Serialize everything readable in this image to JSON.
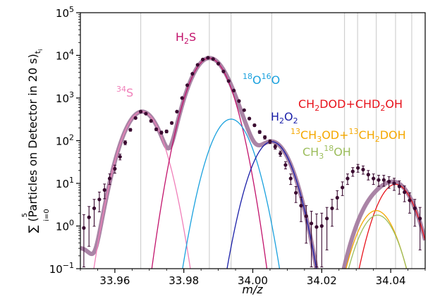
{
  "chart_data": {
    "type": "line",
    "xlabel": "m/z",
    "ylabel": "∑ (Particles on Detector in 20 s)",
    "ylabel_sum_upper": "5",
    "ylabel_sum_lower": "i=0",
    "ylabel_subscript": "t",
    "ylabel_subsubscript": "i",
    "yscale": "log",
    "xlim": [
      33.95,
      34.05
    ],
    "ylim": [
      0.1,
      100000
    ],
    "x_ticks": [
      33.96,
      33.98,
      34.0,
      34.02,
      34.04
    ],
    "x_tick_labels": [
      "33.96",
      "33.98",
      "34.00",
      "34.02",
      "34.04"
    ],
    "y_ticks": [
      {
        "value": 0.1,
        "base": "10",
        "exp": "−1"
      },
      {
        "value": 1,
        "base": "10",
        "exp": "0"
      },
      {
        "value": 10,
        "base": "10",
        "exp": "1"
      },
      {
        "value": 100,
        "base": "10",
        "exp": "2"
      },
      {
        "value": 1000,
        "base": "10",
        "exp": "3"
      },
      {
        "value": 10000,
        "base": "10",
        "exp": "4"
      },
      {
        "value": 100000,
        "base": "10",
        "exp": "5"
      }
    ],
    "vertical_lines": [
      33.9675,
      33.9874,
      33.9937,
      34.0055,
      34.0266,
      34.0304,
      34.0358,
      34.0414,
      34.0461
    ],
    "series": [
      {
        "name": "34S",
        "color": "#f07fb9",
        "peak": {
          "x": 33.9679,
          "y": 480
        },
        "sigma": 0.0034
      },
      {
        "name": "H2S",
        "color": "#c2126b",
        "peak": {
          "x": 33.9874,
          "y": 8600
        },
        "sigma": 0.0035
      },
      {
        "name": "18O16O",
        "color": "#1aa1de",
        "peak": {
          "x": 33.9937,
          "y": 320
        },
        "sigma": 0.0035
      },
      {
        "name": "H2O2",
        "color": "#1a1fa8",
        "peak": {
          "x": 34.0055,
          "y": 95
        },
        "sigma": 0.0035
      },
      {
        "name": "CH2DOD+CHD2OH",
        "color": "#e8131c",
        "peak": {
          "x": 34.0414,
          "y": 9.5
        },
        "sigma": 0.0035
      },
      {
        "name": "13CH3OD+13CH2DOH",
        "color": "#f5a800",
        "peak": {
          "x": 34.0358,
          "y": 2.3
        },
        "sigma": 0.0035
      },
      {
        "name": "CH3 18OH",
        "color": "#9cbd5c",
        "peak": {
          "x": 34.0362,
          "y": 1.8
        },
        "sigma": 0.0035
      }
    ],
    "total_fit": {
      "color": "#9b6e96"
    },
    "data_points": [
      [
        33.951,
        0.9
      ],
      [
        33.9525,
        1.6
      ],
      [
        33.954,
        2.6
      ],
      [
        33.9555,
        4.2
      ],
      [
        33.957,
        7.0
      ],
      [
        33.9585,
        13
      ],
      [
        33.96,
        22
      ],
      [
        33.9615,
        42
      ],
      [
        33.963,
        90
      ],
      [
        33.9645,
        180
      ],
      [
        33.966,
        340
      ],
      [
        33.9675,
        480
      ],
      [
        33.969,
        430
      ],
      [
        33.9705,
        290
      ],
      [
        33.972,
        185
      ],
      [
        33.9735,
        155
      ],
      [
        33.975,
        165
      ],
      [
        33.9765,
        260
      ],
      [
        33.978,
        480
      ],
      [
        33.9795,
        1000
      ],
      [
        33.981,
        2000
      ],
      [
        33.9825,
        3700
      ],
      [
        33.984,
        6000
      ],
      [
        33.9855,
        8000
      ],
      [
        33.987,
        8800
      ],
      [
        33.9885,
        8200
      ],
      [
        33.99,
        6400
      ],
      [
        33.9915,
        4200
      ],
      [
        33.993,
        2500
      ],
      [
        33.9945,
        1500
      ],
      [
        33.996,
        850
      ],
      [
        33.9975,
        520
      ],
      [
        33.999,
        330
      ],
      [
        34.0005,
        230
      ],
      [
        34.002,
        160
      ],
      [
        34.0035,
        120
      ],
      [
        34.005,
        95
      ],
      [
        34.0065,
        72
      ],
      [
        34.008,
        50
      ],
      [
        34.0095,
        27
      ],
      [
        34.011,
        13
      ],
      [
        34.0125,
        6.0
      ],
      [
        34.014,
        3.0
      ],
      [
        34.0155,
        1.7
      ],
      [
        34.017,
        1.15
      ],
      [
        34.0185,
        0.95
      ],
      [
        34.02,
        1.0
      ],
      [
        34.0215,
        1.5
      ],
      [
        34.023,
        2.6
      ],
      [
        34.0245,
        4.6
      ],
      [
        34.026,
        8.0
      ],
      [
        34.0275,
        13
      ],
      [
        34.029,
        19
      ],
      [
        34.0305,
        23
      ],
      [
        34.032,
        21
      ],
      [
        34.0335,
        16
      ],
      [
        34.035,
        13
      ],
      [
        34.0365,
        12
      ],
      [
        34.038,
        12
      ],
      [
        34.0395,
        11
      ],
      [
        34.041,
        10
      ],
      [
        34.0425,
        8.5
      ],
      [
        34.044,
        6.2
      ],
      [
        34.0455,
        4.0
      ],
      [
        34.047,
        2.6
      ],
      [
        34.0485,
        1.5
      ]
    ]
  },
  "labels": {
    "s34": {
      "sup": "34",
      "text": "S"
    },
    "h2s": {
      "a": "H",
      "sub": "2",
      "b": "S"
    },
    "o18o16": {
      "sup1": "18",
      "a": "O",
      "sup2": "16",
      "b": "O"
    },
    "h2o2": {
      "a": "H",
      "sub": "2",
      "b": "O",
      "sub2": "2"
    },
    "ch2dod": {
      "a": "CH",
      "sub1": "2",
      "b": "DOD+CHD",
      "sub2": "2",
      "c": "OH"
    },
    "c13": {
      "sup1": "13",
      "a": "CH",
      "sub1": "3",
      "b": "OD+",
      "sup2": "13",
      "c": "CH",
      "sub2": "2",
      "d": "DOH"
    },
    "ch3o18": {
      "a": "CH",
      "sub": "3",
      "sup": "18",
      "b": "OH"
    }
  }
}
